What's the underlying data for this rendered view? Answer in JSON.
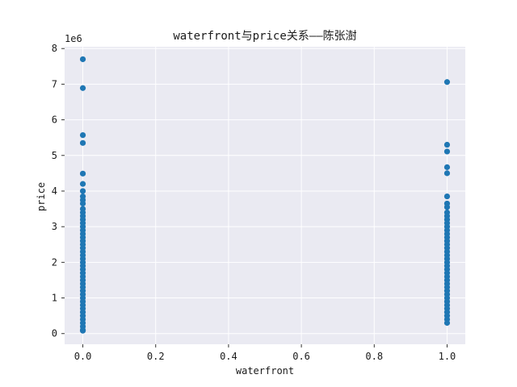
{
  "chart_data": {
    "type": "scatter",
    "title": "waterfront与price关系——陈张澍",
    "xlabel": "waterfront",
    "ylabel": "price",
    "y_multiplier_label": "1e6",
    "xlim": [
      -0.05,
      1.05
    ],
    "ylim": [
      -0.3,
      8.05
    ],
    "x_ticks": [
      0.0,
      0.2,
      0.4,
      0.6,
      0.8,
      1.0
    ],
    "x_tick_labels": [
      "0.0",
      "0.2",
      "0.4",
      "0.6",
      "0.8",
      "1.0"
    ],
    "y_ticks": [
      0,
      1,
      2,
      3,
      4,
      5,
      6,
      7,
      8
    ],
    "y_tick_labels": [
      "0",
      "1",
      "2",
      "3",
      "4",
      "5",
      "6",
      "7",
      "8"
    ],
    "grid": true,
    "point_color": "#1f77b4",
    "plot_background": "#eaeaf2",
    "grid_color": "#ffffff",
    "series": [
      {
        "x_value": 0,
        "y_values": [
          7.7,
          6.89,
          5.57,
          5.35,
          4.49,
          4.2,
          4.0,
          3.85,
          3.75,
          3.65,
          3.5,
          3.4,
          3.3,
          3.2,
          3.1,
          3.0,
          2.9,
          2.8,
          2.7,
          2.6,
          2.5,
          2.4,
          2.3,
          2.2,
          2.1,
          2.0,
          1.9,
          1.8,
          1.7,
          1.6,
          1.5,
          1.4,
          1.3,
          1.2,
          1.1,
          1.0,
          0.9,
          0.8,
          0.7,
          0.6,
          0.5,
          0.4,
          0.3,
          0.2,
          0.1,
          0.08
        ]
      },
      {
        "x_value": 1,
        "y_values": [
          7.06,
          5.3,
          5.11,
          4.67,
          4.5,
          3.85,
          3.65,
          3.55,
          3.4,
          3.3,
          3.2,
          3.1,
          3.0,
          2.9,
          2.8,
          2.7,
          2.6,
          2.5,
          2.4,
          2.3,
          2.2,
          2.1,
          2.0,
          1.9,
          1.8,
          1.7,
          1.6,
          1.5,
          1.4,
          1.3,
          1.2,
          1.1,
          1.0,
          0.9,
          0.8,
          0.7,
          0.6,
          0.5,
          0.4,
          0.3
        ]
      }
    ]
  }
}
